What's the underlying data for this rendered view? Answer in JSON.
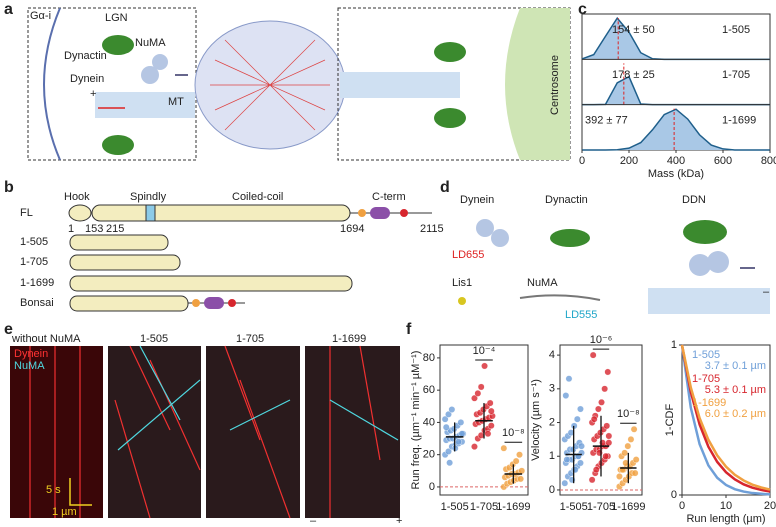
{
  "panels": {
    "a": {
      "label": "a",
      "galpha": "Gα-i",
      "lgn": "LGN",
      "numa": "NuMA",
      "dynactin": "Dynactin",
      "dynein": "Dynein",
      "plus": "+",
      "mt": "MT",
      "centrosome": "Centrosome"
    },
    "b": {
      "label": "b",
      "hook": "Hook",
      "spindly": "Spindly",
      "coiled": "Coiled-coil",
      "cterm": "C-term",
      "fl": "FL",
      "residues": [
        "1",
        "153",
        "215",
        "1694",
        "2115"
      ],
      "constructs": [
        "1-505",
        "1-705",
        "1-1699",
        "Bonsai"
      ]
    },
    "c": {
      "label": "c"
    },
    "d": {
      "label": "d",
      "dynein": "Dynein",
      "dynactin": "Dynactin",
      "ddn": "DDN",
      "ld655": "LD655",
      "lis1": "Lis1",
      "numa": "NuMA",
      "ld555": "LD555",
      "minus": "–"
    },
    "e": {
      "label": "e",
      "titles": [
        "without NuMA",
        "1-505",
        "1-705",
        "1-1699"
      ],
      "dynein": "Dynein",
      "numa": "NuMA",
      "time": "5 s",
      "length": "1 µm",
      "minus": "–",
      "plus": "+"
    },
    "f": {
      "label": "f"
    }
  },
  "chart_data": [
    {
      "type": "area",
      "xlabel": "Mass (kDa)",
      "x": [
        0,
        50,
        100,
        150,
        200,
        250,
        300,
        350,
        400,
        450,
        500,
        550,
        600,
        650,
        700,
        750,
        800
      ],
      "xlim": [
        0,
        800
      ],
      "xticks": [
        0,
        200,
        400,
        600,
        800
      ],
      "ylim": [
        0,
        1.1
      ],
      "series": [
        {
          "name": "1-505",
          "color": "#1f5f8b",
          "mean": 154,
          "annotation": "154 ± 50",
          "values": [
            0.009,
            0.115,
            0.56,
            1.0,
            0.66,
            0.16,
            0.014,
            0,
            0,
            0,
            0,
            0,
            0,
            0,
            0,
            0,
            0
          ]
        },
        {
          "name": "1-705",
          "color": "#1f5f8b",
          "mean": 178,
          "annotation": "178 ± 25",
          "values": [
            0,
            0,
            0.008,
            0.53,
            0.68,
            0.016,
            0,
            0,
            0,
            0,
            0,
            0,
            0,
            0,
            0,
            0,
            0
          ]
        },
        {
          "name": "1-1699",
          "color": "#1f5f8b",
          "mean": 392,
          "annotation": "392 ± 77",
          "values": [
            0,
            0,
            0,
            0.007,
            0.045,
            0.18,
            0.49,
            0.86,
            0.99,
            0.75,
            0.37,
            0.12,
            0.026,
            0,
            0,
            0,
            0
          ]
        }
      ]
    },
    {
      "type": "strip",
      "ylabel": "Run freq.  (µm⁻¹ min⁻¹ µM⁻¹)",
      "categories": [
        "1-505",
        "1-705",
        "1-1699"
      ],
      "colors": [
        "#6f9fd8",
        "#d7262e",
        "#f0a040"
      ],
      "ylim": [
        -5,
        88
      ],
      "yticks": [
        0,
        20,
        40,
        60,
        80
      ],
      "points": [
        [
          20,
          22,
          25,
          26,
          27,
          28,
          29,
          30,
          30,
          31,
          32,
          33,
          34,
          35,
          36,
          38,
          40,
          42,
          45,
          48,
          24,
          28,
          33,
          37,
          15
        ],
        [
          25,
          30,
          32,
          35,
          36,
          38,
          39,
          40,
          41,
          42,
          43,
          44,
          45,
          46,
          48,
          50,
          52,
          55,
          58,
          62,
          75,
          33,
          47
        ],
        [
          0,
          2,
          3,
          4,
          5,
          5,
          6,
          7,
          8,
          8,
          9,
          10,
          11,
          12,
          14,
          16,
          20,
          24
        ]
      ],
      "means": [
        31,
        41,
        8
      ],
      "sds": [
        9,
        11,
        6
      ],
      "pvalues": [
        null,
        "10⁻⁴",
        "10⁻⁸"
      ]
    },
    {
      "type": "strip",
      "ylabel": "Velocity (µm s⁻¹)",
      "categories": [
        "1-505",
        "1-705",
        "1-1699"
      ],
      "colors": [
        "#6f9fd8",
        "#d7262e",
        "#f0a040"
      ],
      "ylim": [
        -0.15,
        4.3
      ],
      "yticks": [
        0,
        1,
        2,
        3,
        4
      ],
      "points": [
        [
          0.2,
          0.4,
          0.5,
          0.6,
          0.7,
          0.8,
          0.8,
          0.9,
          0.9,
          1.0,
          1.0,
          1.1,
          1.1,
          1.2,
          1.2,
          1.3,
          1.4,
          1.5,
          1.6,
          1.7,
          1.9,
          2.1,
          2.4,
          2.8,
          3.3,
          0.3,
          0.6,
          1.0,
          1.3,
          0.9
        ],
        [
          0.3,
          0.5,
          0.7,
          0.8,
          0.9,
          1.0,
          1.1,
          1.2,
          1.2,
          1.3,
          1.3,
          1.4,
          1.5,
          1.6,
          1.7,
          1.8,
          1.9,
          2.0,
          2.2,
          2.4,
          2.6,
          3.0,
          3.5,
          4.0,
          0.6,
          1.1,
          1.4,
          1.0,
          1.6,
          2.1
        ],
        [
          0.1,
          0.2,
          0.3,
          0.4,
          0.5,
          0.5,
          0.6,
          0.6,
          0.7,
          0.7,
          0.8,
          0.9,
          1.0,
          1.1,
          1.3,
          1.5,
          1.8,
          0.4,
          0.6,
          0.8
        ]
      ],
      "means": [
        1.05,
        1.3,
        0.65
      ],
      "sds": [
        0.85,
        0.9,
        0.45
      ],
      "pvalues": [
        null,
        "10⁻⁶",
        "10⁻⁸"
      ]
    },
    {
      "type": "line",
      "xlabel": "Run length (µm)",
      "ylabel": "1-CDF",
      "x": [
        0,
        2,
        4,
        6,
        8,
        10,
        12,
        14,
        16,
        18,
        20
      ],
      "xlim": [
        0,
        20
      ],
      "xticks": [
        0,
        10,
        20
      ],
      "ylim": [
        0,
        1
      ],
      "yticks": [
        0,
        1
      ],
      "series": [
        {
          "name": "1-505",
          "color": "#6f9fd8",
          "annotation": "3.7 ± 0.1 µm",
          "values": [
            1,
            0.582,
            0.339,
            0.197,
            0.115,
            0.067,
            0.039,
            0.023,
            0.013,
            0.008,
            0.004
          ]
        },
        {
          "name": "1-705",
          "color": "#d7262e",
          "annotation": "5.3 ± 0.1 µm",
          "values": [
            1,
            0.686,
            0.47,
            0.322,
            0.221,
            0.152,
            0.104,
            0.071,
            0.049,
            0.034,
            0.023
          ]
        },
        {
          "name": "1-1699",
          "color": "#f0a040",
          "annotation": "6.0 ± 0.2 µm",
          "values": [
            1,
            0.717,
            0.513,
            0.368,
            0.264,
            0.189,
            0.135,
            0.097,
            0.069,
            0.05,
            0.036
          ]
        }
      ]
    }
  ]
}
